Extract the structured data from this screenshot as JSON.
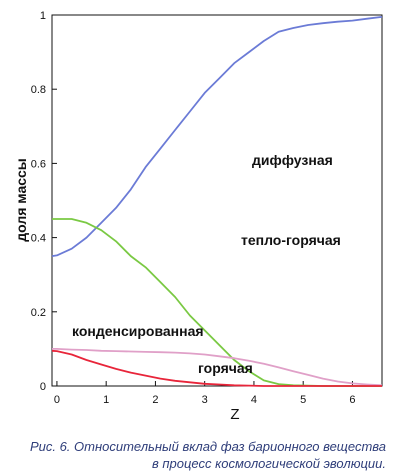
{
  "chart_data": {
    "type": "line",
    "xlabel": "Z",
    "ylabel": "доля массы",
    "xticks": [
      "0",
      "1",
      "2",
      "3",
      "4",
      "5",
      "6"
    ],
    "yticks": [
      "0",
      "0.2",
      "0.4",
      "0.6",
      "0.8",
      "1"
    ],
    "xlim": [
      -0.1,
      6.6
    ],
    "ylim": [
      0,
      1
    ],
    "grid": false,
    "series": [
      {
        "name": "диффузная",
        "color": "#6b7bd6",
        "x": [
          -0.1,
          0,
          0.3,
          0.6,
          0.9,
          1.2,
          1.5,
          1.8,
          2.1,
          2.4,
          2.7,
          3.0,
          3.3,
          3.6,
          3.9,
          4.2,
          4.5,
          4.8,
          5.1,
          5.4,
          5.7,
          6.0,
          6.3,
          6.6
        ],
        "y": [
          0.35,
          0.352,
          0.37,
          0.4,
          0.44,
          0.48,
          0.53,
          0.59,
          0.64,
          0.69,
          0.74,
          0.79,
          0.83,
          0.87,
          0.9,
          0.93,
          0.955,
          0.965,
          0.973,
          0.978,
          0.982,
          0.985,
          0.99,
          0.995
        ]
      },
      {
        "name": "тепло-горячая",
        "color": "#7ac943",
        "x": [
          -0.1,
          0,
          0.3,
          0.6,
          0.9,
          1.2,
          1.5,
          1.8,
          2.1,
          2.4,
          2.7,
          3.0,
          3.3,
          3.6,
          3.9,
          4.2,
          4.5,
          4.8,
          5.1,
          5.4,
          5.7,
          6.0,
          6.3,
          6.6
        ],
        "y": [
          0.45,
          0.45,
          0.45,
          0.44,
          0.42,
          0.39,
          0.35,
          0.32,
          0.28,
          0.24,
          0.19,
          0.15,
          0.11,
          0.07,
          0.04,
          0.015,
          0.005,
          0.002,
          0.001,
          0,
          0,
          0,
          0,
          0
        ]
      },
      {
        "name": "конденсированная",
        "color": "#e0a0c8",
        "x": [
          -0.1,
          0,
          0.3,
          0.6,
          0.9,
          1.2,
          1.5,
          1.8,
          2.1,
          2.4,
          2.7,
          3.0,
          3.3,
          3.6,
          3.9,
          4.2,
          4.5,
          4.8,
          5.1,
          5.4,
          5.7,
          6.0,
          6.3,
          6.6
        ],
        "y": [
          0.1,
          0.1,
          0.098,
          0.097,
          0.095,
          0.094,
          0.093,
          0.092,
          0.091,
          0.09,
          0.088,
          0.085,
          0.08,
          0.075,
          0.068,
          0.06,
          0.05,
          0.04,
          0.03,
          0.02,
          0.012,
          0.007,
          0.004,
          0.002
        ]
      },
      {
        "name": "горячая",
        "color": "#e8253a",
        "x": [
          -0.1,
          0,
          0.3,
          0.6,
          0.9,
          1.2,
          1.5,
          1.8,
          2.1,
          2.4,
          2.7,
          3.0,
          3.3,
          3.6,
          3.9,
          4.2,
          4.5,
          4.8,
          5.1,
          5.4,
          5.7,
          6.0,
          6.3,
          6.6
        ],
        "y": [
          0.095,
          0.094,
          0.085,
          0.07,
          0.058,
          0.046,
          0.036,
          0.028,
          0.02,
          0.014,
          0.01,
          0.006,
          0.004,
          0.002,
          0.001,
          0,
          0,
          0,
          0,
          0,
          0,
          0,
          0,
          0
        ]
      }
    ]
  },
  "caption": {
    "line1": "Рис. 6. Относительный вклад фаз барионного вещества",
    "line2": "в процесс космологической эволюции."
  }
}
